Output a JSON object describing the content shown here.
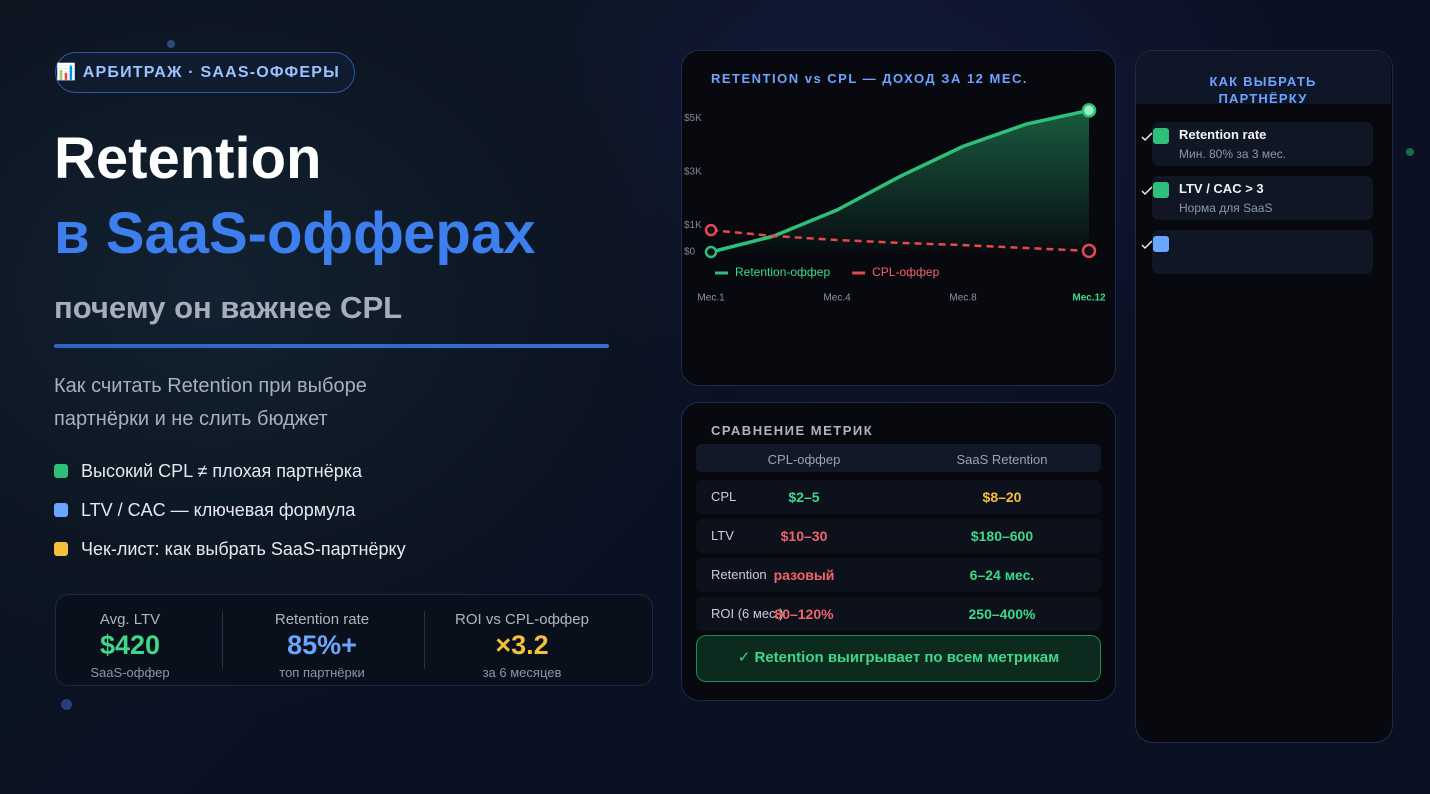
{
  "badge": "📊 АРБИТРАЖ · SAAS-ОФФЕРЫ",
  "title_line1": "Retention",
  "title_line2": "в SaaS-офферах",
  "subtitle": "почему он важнее CPL",
  "description": "Как считать Retention при выборе партнёрки и не слить бюджет",
  "bullets": [
    "Высокий CPL ≠ плохая партнёрка",
    "LTV / CAC — ключевая формула",
    "Чек-лист: как выбрать SaaS-партнёрку"
  ],
  "stats": [
    {
      "label": "Avg. LTV",
      "value": "$420",
      "note": "SaaS-оффер"
    },
    {
      "label": "Retention rate",
      "value": "85%+",
      "note": "топ партнёрки"
    },
    {
      "label": "ROI vs CPL-оффер",
      "value": "×3.2",
      "note": "за 6 месяцев"
    }
  ],
  "chart_data": {
    "type": "line",
    "title": "RETENTION vs CPL — ДОХОД ЗА 12 МЕС.",
    "categories": [
      "Мес.1",
      null,
      "Мес.4",
      null,
      "Мес.8",
      null,
      "Мес.12"
    ],
    "series": [
      {
        "name": "Retention-оффер",
        "color": "#2fbf7a",
        "values": [
          0,
          600,
          1570,
          2830,
          3950,
          4780,
          5300
        ]
      },
      {
        "name": "CPL-оффер",
        "color": "#e5484d",
        "values": [
          820,
          600,
          450,
          340,
          260,
          150,
          40
        ]
      }
    ],
    "ylim": [
      0,
      5500
    ],
    "yticks": [
      {
        "value": 0,
        "label": "$0"
      },
      {
        "value": 1000,
        "label": "$1K"
      },
      {
        "value": 3000,
        "label": "$3K"
      },
      {
        "value": 5000,
        "label": "$5K"
      }
    ],
    "legend": "bottom",
    "grid": false
  },
  "comparison": {
    "title": "СРАВНЕНИЕ МЕТРИК",
    "header": [
      "CPL-оффер",
      "SaaS Retention"
    ],
    "rows": [
      [
        "CPL",
        "$2–5",
        "$8–20"
      ],
      [
        "LTV",
        "$10–30",
        "$180–600"
      ],
      [
        "Retention",
        "разовый",
        "6–24 мес."
      ],
      [
        "ROI (6 мес.)",
        "80–120%",
        "250–400%"
      ]
    ],
    "verdict": "✓ Retention выигрывает по всем метрикам"
  },
  "checklist": {
    "title": "КАК ВЫБРАТЬ ПАРТНЁРКУ",
    "items": [
      {
        "title": "Retention rate",
        "note": "Мин. 80% за 3 мес."
      },
      {
        "title": "LTV / CAC > 3",
        "note": "Норма для SaaS"
      }
    ]
  }
}
